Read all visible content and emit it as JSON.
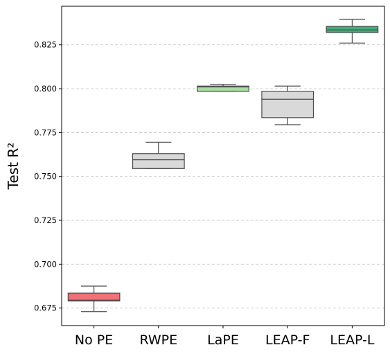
{
  "chart_data": {
    "type": "box",
    "ylabel": "Test R²",
    "xlabel": "",
    "ylim": [
      0.665,
      0.847
    ],
    "yticks": [
      0.675,
      0.7,
      0.725,
      0.75,
      0.775,
      0.8,
      0.825
    ],
    "ytick_labels": [
      "0.675",
      "0.700",
      "0.725",
      "0.750",
      "0.775",
      "0.800",
      "0.825"
    ],
    "grid": "horizontal dashed",
    "categories": [
      "No PE",
      "RWPE",
      "LaPE",
      "LEAP-F",
      "LEAP-L"
    ],
    "boxes": [
      {
        "category": "No PE",
        "whisker_low": 0.673,
        "q1": 0.679,
        "median": 0.6795,
        "q3": 0.6835,
        "whisker_high": 0.6875,
        "color": "#f07178"
      },
      {
        "category": "RWPE",
        "whisker_low": 0.7545,
        "q1": 0.7545,
        "median": 0.7595,
        "q3": 0.763,
        "whisker_high": 0.7695,
        "color": "#d9d9d9"
      },
      {
        "category": "LaPE",
        "whisker_low": 0.7985,
        "q1": 0.7985,
        "median": 0.801,
        "q3": 0.8015,
        "whisker_high": 0.8025,
        "color": "#a8dca0"
      },
      {
        "category": "LEAP-F",
        "whisker_low": 0.7795,
        "q1": 0.7835,
        "median": 0.794,
        "q3": 0.7985,
        "whisker_high": 0.8015,
        "color": "#d9d9d9"
      },
      {
        "category": "LEAP-L",
        "whisker_low": 0.826,
        "q1": 0.832,
        "median": 0.8335,
        "q3": 0.8355,
        "whisker_high": 0.8395,
        "color": "#3daf78"
      }
    ]
  }
}
